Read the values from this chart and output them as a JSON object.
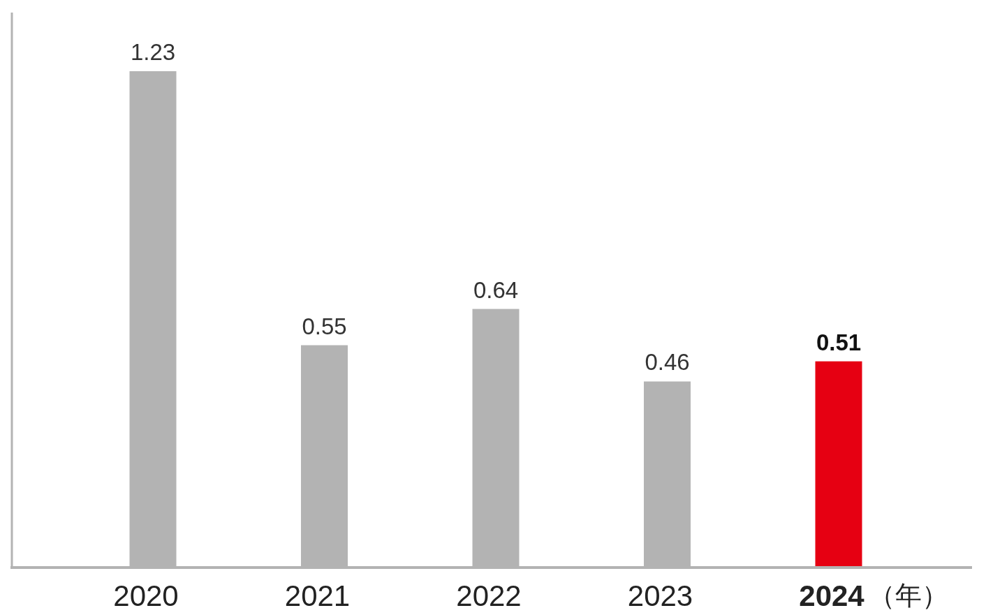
{
  "chart_data": {
    "type": "bar",
    "categories": [
      "2020",
      "2021",
      "2022",
      "2023",
      "2024"
    ],
    "values": [
      1.23,
      0.55,
      0.64,
      0.46,
      0.51
    ],
    "colors": [
      "#b3b3b3",
      "#b3b3b3",
      "#b3b3b3",
      "#b3b3b3",
      "#e60012"
    ],
    "xlabel": "（年）",
    "data_labels": true
  }
}
